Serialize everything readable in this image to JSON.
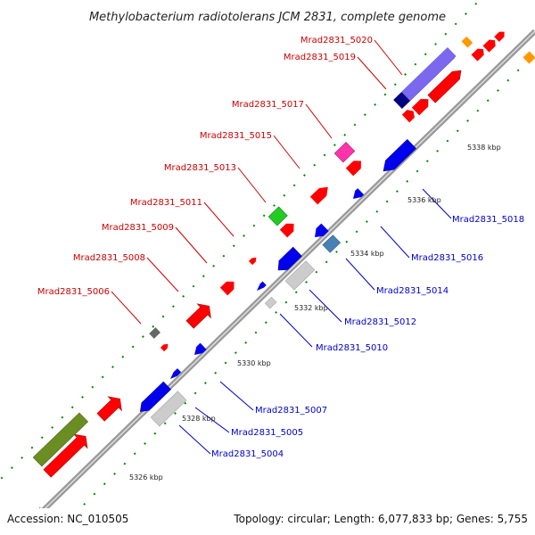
{
  "title": "Methylobacterium radiotolerans JCM 2831, complete genome",
  "footer": {
    "accession": "Accession: NC_010505",
    "summary": "Topology: circular; Length: 6,077,833 bp; Genes: 5,755"
  },
  "ticks": {
    "t5326": "5326 kbp",
    "t5328": "5328 kbp",
    "t5330": "5330 kbp",
    "t5332": "5332 kbp",
    "t5334": "5334 kbp",
    "t5336": "5336 kbp",
    "t5338": "5338 kbp"
  },
  "labels": {
    "g5004": "Mrad2831_5004",
    "g5005": "Mrad2831_5005",
    "g5006": "Mrad2831_5006",
    "g5007": "Mrad2831_5007",
    "g5008": "Mrad2831_5008",
    "g5009": "Mrad2831_5009",
    "g5010": "Mrad2831_5010",
    "g5011": "Mrad2831_5011",
    "g5012": "Mrad2831_5012",
    "g5013": "Mrad2831_5013",
    "g5014": "Mrad2831_5014",
    "g5015": "Mrad2831_5015",
    "g5016": "Mrad2831_5016",
    "g5017": "Mrad2831_5017",
    "g5018": "Mrad2831_5018",
    "g5019": "Mrad2831_5019",
    "g5020": "Mrad2831_5020"
  },
  "colors": {
    "forward_red": "#ff0000",
    "reverse_blue": "#0000ee",
    "pseudo_gray": "#cccccc",
    "dark_gray": "#666666",
    "green": "#22cc22",
    "olive": "#6b8e23",
    "magenta": "#ff33aa",
    "steelblue": "#4682b4",
    "navy": "#000080",
    "mediumslate": "#7b68ee",
    "orange": "#ff9900",
    "backbone": "#999999",
    "dotted_track": "#008800"
  }
}
